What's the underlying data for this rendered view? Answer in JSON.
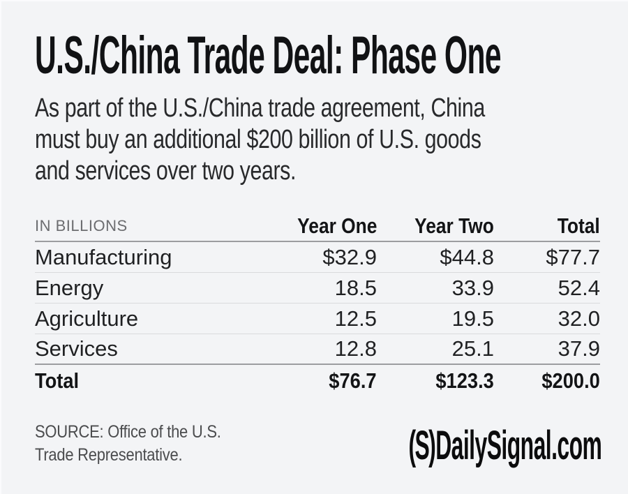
{
  "title": "U.S./China Trade Deal: Phase One",
  "subtitle": "As part of the U.S./China trade agreement, China\nmust buy an additional $200 billion of U.S. goods\nand services over two years.",
  "table": {
    "unit_label": "IN BILLIONS",
    "columns": [
      "Year One",
      "Year Two",
      "Total"
    ],
    "rows": [
      {
        "category": "Manufacturing",
        "year_one": "$32.9",
        "year_two": "$44.8",
        "total": "$77.7"
      },
      {
        "category": "Energy",
        "year_one": "18.5",
        "year_two": "33.9",
        "total": "52.4"
      },
      {
        "category": "Agriculture",
        "year_one": "12.5",
        "year_two": "19.5",
        "total": "32.0"
      },
      {
        "category": "Services",
        "year_one": "12.8",
        "year_two": "25.1",
        "total": "37.9"
      }
    ],
    "total_row": {
      "category": "Total",
      "year_one": "$76.7",
      "year_two": "$123.3",
      "total": "$200.0"
    }
  },
  "footer": {
    "source": "SOURCE: Office of the U.S.\nTrade Representative.",
    "logo_mark": "(S)",
    "logo_text": "DailySignal.com"
  },
  "colors": {
    "background": "#f3f4f6",
    "text": "#1f2022",
    "muted_label": "#6c6d70",
    "source_text": "#4b4c4e",
    "strong_rule": "#9c9da0",
    "light_rule": "#d9dadc"
  },
  "chart_data": {
    "type": "table",
    "title": "U.S./China Trade Deal: Phase One",
    "subtitle": "As part of the U.S./China trade agreement, China must buy an additional $200 billion of U.S. goods and services over two years.",
    "unit": "billions of U.S. dollars",
    "columns": [
      "Year One",
      "Year Two",
      "Total"
    ],
    "rows": [
      {
        "category": "Manufacturing",
        "values": [
          32.9,
          44.8,
          77.7
        ]
      },
      {
        "category": "Energy",
        "values": [
          18.5,
          33.9,
          52.4
        ]
      },
      {
        "category": "Agriculture",
        "values": [
          12.5,
          19.5,
          32.0
        ]
      },
      {
        "category": "Services",
        "values": [
          12.8,
          25.1,
          37.9
        ]
      },
      {
        "category": "Total",
        "values": [
          76.7,
          123.3,
          200.0
        ]
      }
    ],
    "source": "Office of the U.S. Trade Representative",
    "publisher": "DailySignal.com"
  }
}
